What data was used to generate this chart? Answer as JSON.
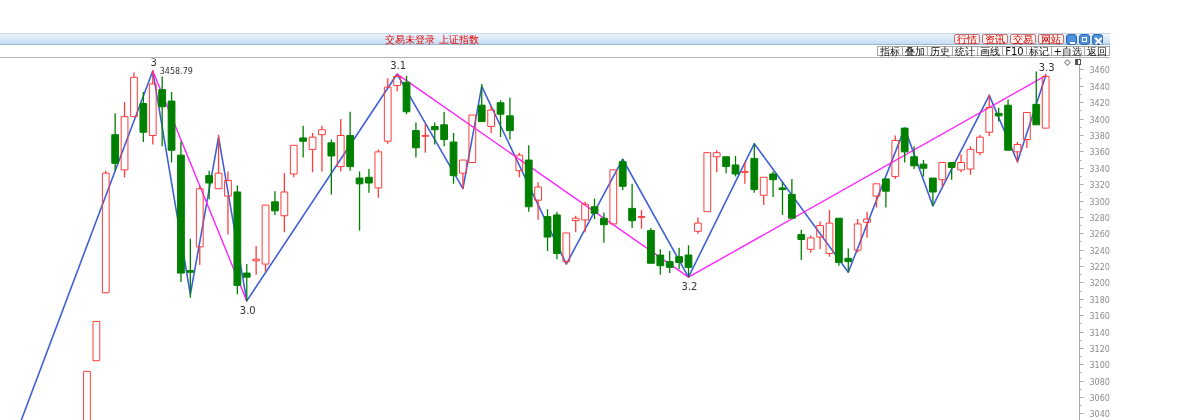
{
  "chart_data": {
    "type": "candlestick",
    "title": "交易未登录 上证指数",
    "annotations": [
      "行情",
      "资讯",
      "交易",
      "网站",
      "指标",
      "叠加",
      "历史",
      "统计",
      "画线",
      "F10",
      "标记",
      "+自选",
      "返回",
      {
        "text": "3",
        "y": 3458.79
      },
      {
        "text": "3.0",
        "y": 3178
      },
      {
        "text": "3.1",
        "y": 3455
      },
      {
        "text": "3.2",
        "y": 3207
      },
      {
        "text": "3.3",
        "y": 3453
      }
    ],
    "categories": [
      null,
      null,
      null,
      null,
      null,
      null,
      null,
      null,
      null,
      null,
      null,
      null,
      null,
      null,
      null,
      null,
      null,
      null,
      null,
      null,
      null,
      null,
      null,
      null,
      null,
      null,
      null,
      null,
      null,
      null,
      null,
      null,
      null,
      null,
      null,
      null,
      null,
      null,
      null,
      null,
      null,
      null,
      null,
      null,
      null,
      null,
      null,
      null,
      null,
      null,
      null,
      null,
      null,
      null,
      null,
      null,
      null,
      null,
      null,
      null,
      null,
      null,
      null,
      null,
      null,
      null,
      null,
      null,
      null,
      null,
      null,
      null,
      null,
      null,
      null,
      null,
      null,
      null,
      null,
      null,
      null,
      null,
      null,
      null,
      null,
      null,
      null,
      null,
      null,
      null,
      null,
      null,
      null,
      null,
      null,
      null,
      null,
      null,
      null,
      null,
      null,
      null,
      null,
      null,
      null,
      null,
      null,
      null,
      null,
      null
    ],
    "ohlc": [
      null,
      null,
      null,
      null,
      null,
      null,
      null,
      [
        3032,
        3092,
        3032,
        3092
      ],
      [
        3105,
        3153,
        3105,
        3153
      ],
      [
        3188,
        3337,
        3188,
        3334
      ],
      [
        3381,
        3407,
        3337,
        3346
      ],
      [
        3338,
        3421,
        3329,
        3403
      ],
      [
        3403,
        3457,
        3403,
        3451
      ],
      [
        3419,
        3433,
        3372,
        3384
      ],
      [
        3380,
        3458.79,
        3369,
        3443
      ],
      [
        3436,
        3452,
        3367,
        3415
      ],
      [
        3422,
        3433,
        3347,
        3362
      ],
      [
        3356,
        3373,
        3201,
        3212
      ],
      [
        3215,
        3254,
        3182,
        3213
      ],
      [
        3244,
        3318,
        3222,
        3315
      ],
      [
        3331,
        3337,
        3302,
        3322
      ],
      [
        3315,
        3381,
        3315,
        3334
      ],
      [
        3306,
        3336,
        3259,
        3325
      ],
      [
        3311,
        3319,
        3186,
        3197
      ],
      [
        3212,
        3223,
        3178,
        3207
      ],
      [
        3227,
        3245,
        3210,
        3229
      ],
      [
        3223,
        3295,
        3213,
        3295
      ],
      [
        3299,
        3312,
        3283,
        3288
      ],
      [
        3282,
        3334,
        3262,
        3311
      ],
      [
        3333,
        3368,
        3329,
        3368
      ],
      [
        3377,
        3392,
        3353,
        3373
      ],
      [
        3363,
        3383,
        3335,
        3378
      ],
      [
        3381,
        3392,
        3336,
        3387
      ],
      [
        3371,
        3375,
        3308,
        3355
      ],
      [
        3342,
        3400,
        3336,
        3380
      ],
      [
        3380,
        3409,
        3337,
        3342
      ],
      [
        3328,
        3336,
        3264,
        3321
      ],
      [
        3329,
        3339,
        3310,
        3322
      ],
      [
        3316,
        3363,
        3304,
        3360
      ],
      [
        3373,
        3450,
        3370,
        3439
      ],
      [
        3441,
        3455,
        3434,
        3452
      ],
      [
        3445,
        3453,
        3406,
        3409
      ],
      [
        3386,
        3396,
        3353,
        3365
      ],
      [
        3379,
        3394,
        3359,
        3380
      ],
      [
        3391,
        3396,
        3369,
        3387
      ],
      [
        3393,
        3409,
        3367,
        3375
      ],
      [
        3372,
        3383,
        3321,
        3331
      ],
      [
        3334,
        3350,
        3315,
        3350
      ],
      [
        3347,
        3405,
        3347,
        3405
      ],
      [
        3417,
        3443,
        3397,
        3397
      ],
      [
        3391,
        3416,
        3383,
        3411
      ],
      [
        3420,
        3423,
        3378,
        3406
      ],
      [
        3404,
        3426,
        3375,
        3386
      ],
      [
        3337,
        3359,
        3329,
        3356
      ],
      [
        3350,
        3368,
        3287,
        3293
      ],
      [
        3301,
        3323,
        3277,
        3317
      ],
      [
        3281,
        3290,
        3239,
        3256
      ],
      [
        3283,
        3287,
        3229,
        3236
      ],
      [
        3226,
        3261,
        3223,
        3261
      ],
      [
        3276,
        3282,
        3262,
        3279
      ],
      [
        3277,
        3299,
        3262,
        3296
      ],
      [
        3293,
        3303,
        3278,
        3285
      ],
      [
        3279,
        3286,
        3249,
        3271
      ],
      [
        3272,
        3338,
        3272,
        3338
      ],
      [
        3348,
        3351,
        3313,
        3318
      ],
      [
        3291,
        3321,
        3267,
        3276
      ],
      [
        3280,
        3289,
        3266,
        3281
      ],
      [
        3264,
        3267,
        3224,
        3224
      ],
      [
        3234,
        3241,
        3210,
        3221
      ],
      [
        3226,
        3239,
        3212,
        3219
      ],
      [
        3232,
        3243,
        3217,
        3225
      ],
      [
        3234,
        3246,
        3207,
        3219
      ],
      [
        3263,
        3280,
        3260,
        3273
      ],
      [
        3287,
        3359,
        3287,
        3359
      ],
      [
        3354,
        3362,
        3335,
        3359
      ],
      [
        3354,
        3354,
        3334,
        3342
      ],
      [
        3344,
        3355,
        3330,
        3333
      ],
      [
        3335,
        3348,
        3321,
        3336
      ],
      [
        3352,
        3370,
        3310,
        3314
      ],
      [
        3307,
        3329,
        3295,
        3329
      ],
      [
        3333,
        3336,
        3305,
        3326
      ],
      [
        3316,
        3323,
        3283,
        3314
      ],
      [
        3308,
        3327,
        3279,
        3279
      ],
      [
        3259,
        3265,
        3228,
        3253
      ],
      [
        3241,
        3258,
        3237,
        3255
      ],
      [
        3256,
        3275,
        3241,
        3270
      ],
      [
        3236,
        3289,
        3232,
        3273
      ],
      [
        3279,
        3279,
        3221,
        3225
      ],
      [
        3230,
        3242,
        3213,
        3226
      ],
      [
        3240,
        3278,
        3237,
        3272
      ],
      [
        3274,
        3287,
        3255,
        3278
      ],
      [
        3306,
        3321,
        3292,
        3321
      ],
      [
        3327,
        3327,
        3292,
        3312
      ],
      [
        3330,
        3380,
        3327,
        3374
      ],
      [
        3389,
        3389,
        3347,
        3360
      ],
      [
        3354,
        3367,
        3339,
        3343
      ],
      [
        3345,
        3350,
        3330,
        3340
      ],
      [
        3328,
        3328,
        3294,
        3311
      ],
      [
        3326,
        3347,
        3317,
        3347
      ],
      [
        3347,
        3347,
        3326,
        3341
      ],
      [
        3338,
        3357,
        3335,
        3347
      ],
      [
        3339,
        3367,
        3332,
        3363
      ],
      [
        3359,
        3381,
        3356,
        3378
      ],
      [
        3384,
        3430,
        3379,
        3414
      ],
      [
        3407,
        3414,
        3397,
        3404
      ],
      [
        3417,
        3424,
        3362,
        3362
      ],
      [
        3360,
        3372,
        3347,
        3369
      ],
      [
        3375,
        3408,
        3365,
        3408
      ],
      [
        3418,
        3458,
        3393,
        3393
      ],
      [
        3389,
        3455,
        3389,
        3452
      ]
    ],
    "colors": [
      null,
      null,
      null,
      null,
      null,
      null,
      null,
      "#ff3c3c",
      "#ff3c3c",
      "#ff3c3c",
      "#008000",
      "#ff3c3c",
      "#ff3c3c",
      "#008000",
      "#ff3c3c",
      "#008000",
      "#008000",
      "#008000",
      "#008000",
      "#ff3c3c",
      "#008000",
      "#ff3c3c",
      "#ff3c3c",
      "#008000",
      "#008000",
      "#ff3c3c",
      "#ff3c3c",
      "#008000",
      "#ff3c3c",
      "#ff3c3c",
      "#008000",
      "#ff3c3c",
      "#ff3c3c",
      "#008000",
      "#ff3c3c",
      "#008000",
      "#008000",
      "#008000",
      "#ff3c3c",
      "#ff3c3c",
      "#ff3c3c",
      "#008000",
      "#008000",
      "#ff3c3c",
      "#008000",
      "#008000",
      "#008000",
      "#ff3c3c",
      "#ff3c3c",
      "#008000",
      "#ff3c3c",
      "#008000",
      "#008000",
      "#ff3c3c",
      "#008000",
      "#ff3c3c",
      "#008000",
      "#008000",
      "#ff3c3c",
      "#ff3c3c",
      "#ff3c3c",
      "#008000",
      "#008000",
      "#ff3c3c",
      "#008000",
      "#008000",
      "#ff3c3c",
      "#008000",
      "#008000",
      "#008000",
      "#008000",
      "#008000",
      "#ff3c3c",
      "#ff3c3c",
      "#ff3c3c",
      "#008000",
      "#008000",
      "#ff3c3c",
      "#008000",
      "#ff3c3c",
      "#008000",
      "#008000",
      "#008000",
      "#008000",
      "#ff3c3c",
      "#ff3c3c",
      "#ff3c3c",
      "#008000",
      "#008000",
      "#ff3c3c",
      "#ff3c3c",
      "#ff3c3c",
      "#008000",
      "#ff3c3c",
      "#008000",
      "#008000",
      "#008000",
      "#008000",
      "#ff3c3c",
      "#008000",
      "#ff3c3c",
      "#ff3c3c",
      "#ff3c3c",
      "#ff3c3c",
      "#008000",
      "#008000",
      "#ff3c3c",
      "#ff3c3c",
      "#008000",
      "#ff3c3c"
    ],
    "series": [
      {
        "type": "line",
        "color": "#4060d8",
        "values": [
          3032,
          null,
          null,
          null,
          null,
          null,
          null,
          null,
          null,
          null,
          null,
          null,
          null,
          null,
          3458.79,
          null,
          null,
          null,
          3186,
          null,
          null,
          3378,
          null,
          null,
          3178,
          null,
          null,
          null,
          null,
          null,
          null,
          null,
          null,
          null,
          null,
          null,
          null,
          null,
          null,
          null,
          3455,
          null,
          null,
          null,
          null,
          null,
          null,
          3315,
          null,
          3440,
          null,
          null,
          null,
          null,
          null,
          null,
          null,
          null,
          3223,
          null,
          null,
          null,
          null,
          null,
          3351,
          null,
          null,
          null,
          null,
          null,
          null,
          3207,
          null,
          null,
          null,
          null,
          null,
          null,
          3370,
          null,
          null,
          null,
          null,
          null,
          null,
          null,
          null,
          null,
          3213,
          null,
          null,
          null,
          null,
          null,
          3389,
          null,
          null,
          3294,
          null,
          null,
          null,
          null,
          null,
          3429,
          null,
          null,
          3348,
          null,
          null,
          3453
        ],
        "value_labels": [
          null,
          null,
          null,
          null,
          null,
          null,
          null,
          null,
          null,
          null,
          null,
          null,
          null,
          null,
          "3458.79",
          null,
          null,
          null,
          null,
          null,
          null,
          null,
          null,
          null,
          null,
          null,
          null,
          null,
          null,
          null,
          null,
          null,
          null,
          null,
          null,
          null,
          null,
          null,
          null,
          null,
          null,
          null,
          null,
          null,
          null,
          null,
          null,
          null,
          null,
          null,
          null,
          null,
          null,
          null,
          null,
          null,
          null,
          null,
          null,
          null,
          null,
          null,
          null,
          null,
          null,
          null,
          null,
          null,
          null,
          null,
          null,
          null,
          null,
          null,
          null,
          null,
          null,
          null,
          null,
          null,
          null,
          null,
          null,
          null,
          null,
          null,
          null,
          null,
          null,
          null,
          null,
          null,
          null,
          null,
          null,
          null,
          null,
          null,
          null,
          null,
          null,
          null,
          null,
          null,
          null,
          null,
          null,
          null,
          null,
          null
        ]
      },
      {
        "type": "line",
        "color": "#ff22ff",
        "values": [
          null,
          null,
          null,
          null,
          null,
          null,
          null,
          null,
          null,
          null,
          null,
          null,
          null,
          null,
          3459,
          null,
          null,
          null,
          null,
          null,
          null,
          null,
          null,
          null,
          3178,
          null,
          null,
          null,
          null,
          null,
          null,
          null,
          null,
          null,
          null,
          null,
          null,
          null,
          null,
          null,
          null,
          null,
          null,
          null,
          null,
          null,
          null,
          null,
          null,
          null,
          null,
          null,
          null,
          null,
          null,
          null,
          null,
          null,
          null,
          null,
          null,
          null,
          null,
          null,
          null,
          null,
          null,
          null,
          null,
          null,
          null,
          null,
          null,
          null,
          null,
          null,
          null,
          null,
          null,
          null,
          null,
          null,
          null,
          null,
          null,
          null,
          null,
          null,
          null,
          null,
          null,
          null,
          null,
          null,
          null,
          null,
          null,
          null,
          null,
          null,
          null,
          null,
          null,
          null,
          null,
          null,
          null,
          null,
          null,
          null
        ]
      },
      {
        "type": "line",
        "color": "#ff22ff",
        "values": [
          null,
          null,
          null,
          null,
          null,
          null,
          null,
          null,
          null,
          null,
          null,
          null,
          null,
          null,
          null,
          null,
          null,
          null,
          null,
          null,
          null,
          null,
          null,
          null,
          null,
          null,
          null,
          null,
          null,
          null,
          null,
          null,
          null,
          null,
          null,
          null,
          null,
          null,
          null,
          null,
          3455,
          null,
          null,
          null,
          null,
          null,
          null,
          null,
          null,
          null,
          null,
          null,
          null,
          null,
          null,
          null,
          null,
          null,
          null,
          null,
          null,
          null,
          null,
          null,
          null,
          null,
          null,
          null,
          null,
          null,
          null,
          3207,
          null,
          null,
          null,
          null,
          null,
          null,
          null,
          null,
          null,
          null,
          null,
          null,
          null,
          null,
          null,
          null,
          null,
          null,
          null,
          null,
          null,
          null,
          null,
          null,
          null,
          null,
          null,
          null,
          null,
          null,
          null,
          null,
          null,
          null,
          null,
          null,
          null,
          3453
        ]
      }
    ],
    "ylim": [
      3032,
      3474
    ],
    "yticks": [
      3040,
      3060,
      3080,
      3100,
      3120,
      3140,
      3160,
      3180,
      3200,
      3220,
      3240,
      3260,
      3280,
      3300,
      3320,
      3340,
      3360,
      3380,
      3400,
      3420,
      3440,
      3460
    ],
    "tick_labels": "y"
  }
}
